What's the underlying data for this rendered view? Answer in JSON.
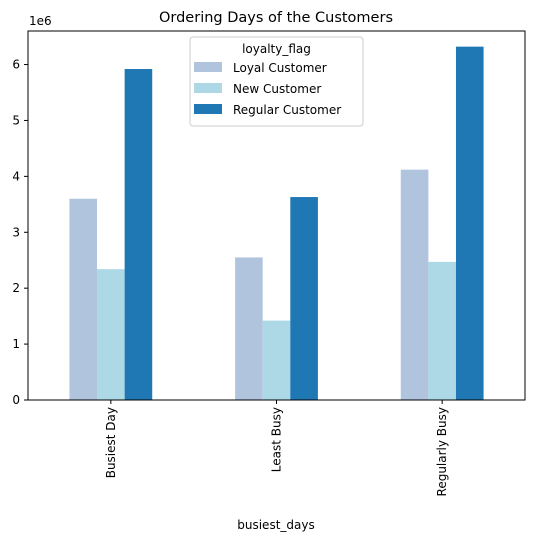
{
  "chart_data": {
    "type": "bar",
    "title": "Ordering Days of the Customers",
    "xlabel": "busiest_days",
    "ylabel": "",
    "y_multiplier_label": "1e6",
    "ylim": [
      0,
      6.6
    ],
    "yticks": [
      0,
      1,
      2,
      3,
      4,
      5,
      6
    ],
    "categories": [
      "Busiest Day",
      "Least Busy",
      "Regularly Busy"
    ],
    "legend": {
      "title": "loyalty_flag",
      "placement": "top-center"
    },
    "grid": false,
    "series": [
      {
        "name": "Loyal Customer",
        "color": "#b0c4de",
        "values": [
          3.6,
          2.55,
          4.12
        ]
      },
      {
        "name": "New Customer",
        "color": "#add8e6",
        "values": [
          2.34,
          1.42,
          2.47
        ]
      },
      {
        "name": "Regular Customer",
        "color": "#1f77b4",
        "values": [
          5.92,
          3.63,
          6.32
        ]
      }
    ]
  }
}
